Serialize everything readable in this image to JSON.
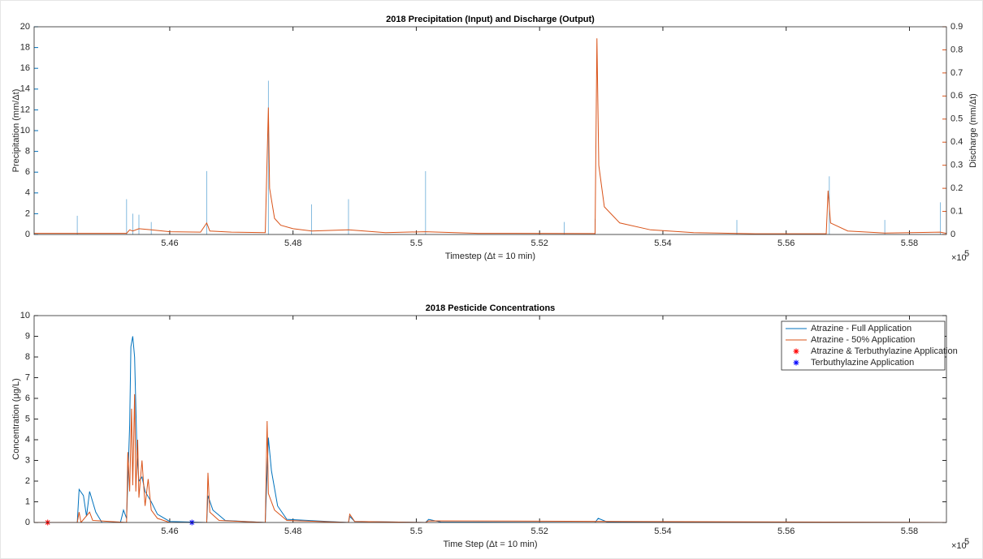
{
  "chart_data": [
    {
      "type": "line",
      "title": "2018 Precipitation (Input) and Discharge (Output)",
      "x_label": "Timestep (Δt = 10 min)",
      "y_label": "Precipitation (mm/Δt)",
      "y2_label": "Discharge (mm/Δt)",
      "x_multiplier": "×10",
      "x_multiplier_exponent": "5",
      "xlim": [
        543800,
        558600
      ],
      "xticks": [
        {
          "value": 546000,
          "label": "5.46"
        },
        {
          "value": 548000,
          "label": "5.48"
        },
        {
          "value": 550000,
          "label": "5.5"
        },
        {
          "value": 552000,
          "label": "5.52"
        },
        {
          "value": 554000,
          "label": "5.54"
        },
        {
          "value": 556000,
          "label": "5.56"
        },
        {
          "value": 558000,
          "label": "5.58"
        }
      ],
      "ylim": [
        0,
        20
      ],
      "yticks": [
        0,
        2,
        4,
        6,
        8,
        10,
        12,
        14,
        16,
        18,
        20
      ],
      "y2lim": [
        0,
        0.9
      ],
      "y2ticks": [
        0,
        0.1,
        0.2,
        0.3,
        0.4,
        0.5,
        0.6,
        0.7,
        0.8,
        0.9
      ],
      "y_color": "#0072BD",
      "y2_color": "#D95319",
      "series": [
        {
          "style": "stem",
          "color": "#0072BD",
          "x": [
            544500,
            545300,
            545400,
            545500,
            545700,
            546600,
            547600,
            548300,
            548900,
            550150,
            552400,
            552900,
            555200,
            556700,
            557600,
            558500
          ],
          "values": [
            1.8,
            3.4,
            2,
            1.9,
            1.2,
            6.1,
            14.8,
            2.9,
            3.4,
            6.1,
            1.2,
            1.5,
            1.4,
            5.6,
            1.4,
            3.1
          ]
        },
        {
          "style": "line",
          "color": "#D95319",
          "axis": "y2",
          "x": [
            543800,
            545300,
            545350,
            545400,
            545500,
            545700,
            546000,
            546500,
            546600,
            546650,
            547000,
            547550,
            547600,
            547620,
            547700,
            547800,
            548000,
            548300,
            548900,
            549500,
            550150,
            551000,
            552900,
            552930,
            552960,
            553050,
            553300,
            553800,
            554500,
            555500,
            556650,
            556680,
            556720,
            557000,
            557600,
            558500,
            558600
          ],
          "values": [
            0.005,
            0.005,
            0.02,
            0.015,
            0.025,
            0.02,
            0.012,
            0.01,
            0.05,
            0.015,
            0.01,
            0.008,
            0.55,
            0.2,
            0.07,
            0.04,
            0.025,
            0.015,
            0.02,
            0.008,
            0.012,
            0.005,
            0.004,
            0.85,
            0.3,
            0.12,
            0.05,
            0.02,
            0.008,
            0.003,
            0.003,
            0.19,
            0.05,
            0.015,
            0.006,
            0.01,
            0.005
          ]
        }
      ]
    },
    {
      "type": "line",
      "title": "2018 Pesticide Concentrations",
      "x_label": "Time Step (Δt = 10 min)",
      "y_label": "Concentration (μg/L)",
      "x_multiplier": "×10",
      "x_multiplier_exponent": "5",
      "xlim": [
        543800,
        558600
      ],
      "xticks": [
        {
          "value": 546000,
          "label": "5.46"
        },
        {
          "value": 548000,
          "label": "5.48"
        },
        {
          "value": 550000,
          "label": "5.5"
        },
        {
          "value": 552000,
          "label": "5.52"
        },
        {
          "value": 554000,
          "label": "5.54"
        },
        {
          "value": 556000,
          "label": "5.56"
        },
        {
          "value": 558000,
          "label": "5.58"
        }
      ],
      "ylim": [
        0,
        10
      ],
      "yticks": [
        0,
        1,
        2,
        3,
        4,
        5,
        6,
        7,
        8,
        9,
        10
      ],
      "legend": "northeast",
      "series": [
        {
          "name": "Atrazine - Full Application",
          "style": "line",
          "color": "#0072BD",
          "x": [
            543800,
            544500,
            544530,
            544600,
            544650,
            544700,
            544800,
            544900,
            545200,
            545250,
            545300,
            545350,
            545370,
            545400,
            545430,
            545470,
            545500,
            545550,
            545600,
            545700,
            545800,
            546000,
            546600,
            546620,
            546700,
            546900,
            547550,
            547600,
            547650,
            547750,
            547900,
            548900,
            548920,
            549000,
            550150,
            550200,
            550400,
            552900,
            552950,
            553100,
            558600
          ],
          "values": [
            0,
            0,
            1.6,
            1.3,
            0.3,
            1.5,
            0.5,
            0,
            0,
            0.6,
            0.2,
            4.7,
            8.5,
            9.0,
            8.0,
            3.2,
            2.0,
            2.2,
            1.5,
            1.0,
            0.4,
            0.05,
            0,
            1.3,
            0.6,
            0.1,
            0,
            4.1,
            2.5,
            0.8,
            0.15,
            0,
            0.3,
            0.05,
            0,
            0.15,
            0.02,
            0,
            0.2,
            0.02,
            0
          ]
        },
        {
          "name": "Atrazine - 50% Application",
          "style": "line",
          "color": "#D95319",
          "x": [
            543800,
            544500,
            544530,
            544560,
            544700,
            544750,
            545300,
            545320,
            545350,
            545380,
            545400,
            545430,
            545450,
            545480,
            545500,
            545550,
            545600,
            545650,
            545700,
            545800,
            546000,
            546600,
            546620,
            546650,
            546800,
            547550,
            547580,
            547600,
            547700,
            547900,
            548900,
            548920,
            549000,
            550150,
            550200,
            558600
          ],
          "values": [
            0,
            0,
            0.5,
            0,
            0.5,
            0.1,
            0,
            3.4,
            1.5,
            5.5,
            1.8,
            6.2,
            1.5,
            4.0,
            1.2,
            3.0,
            0.8,
            2.1,
            0.6,
            0.2,
            0,
            0,
            2.4,
            0.5,
            0.1,
            0,
            4.9,
            1.4,
            0.6,
            0.1,
            0,
            0.4,
            0.05,
            0,
            0.08,
            0
          ]
        },
        {
          "name": "Atrazine & Terbuthylazine Application",
          "style": "marker",
          "color": "#FF0000",
          "x": [
            544020
          ],
          "values": [
            0
          ]
        },
        {
          "name": "Terbuthylazine Application",
          "style": "marker",
          "color": "#0000FF",
          "x": [
            546360
          ],
          "values": [
            0
          ]
        }
      ]
    }
  ]
}
